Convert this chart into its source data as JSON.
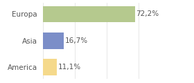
{
  "categories": [
    "America",
    "Asia",
    "Europa"
  ],
  "values": [
    11.1,
    16.7,
    72.2
  ],
  "labels": [
    "11,1%",
    "16,7%",
    "72,2%"
  ],
  "bar_colors": [
    "#f5d98b",
    "#7b8ec8",
    "#b5c98e"
  ],
  "xlim": [
    0,
    100
  ],
  "background_color": "#ffffff",
  "label_fontsize": 7.5,
  "tick_fontsize": 7.5
}
